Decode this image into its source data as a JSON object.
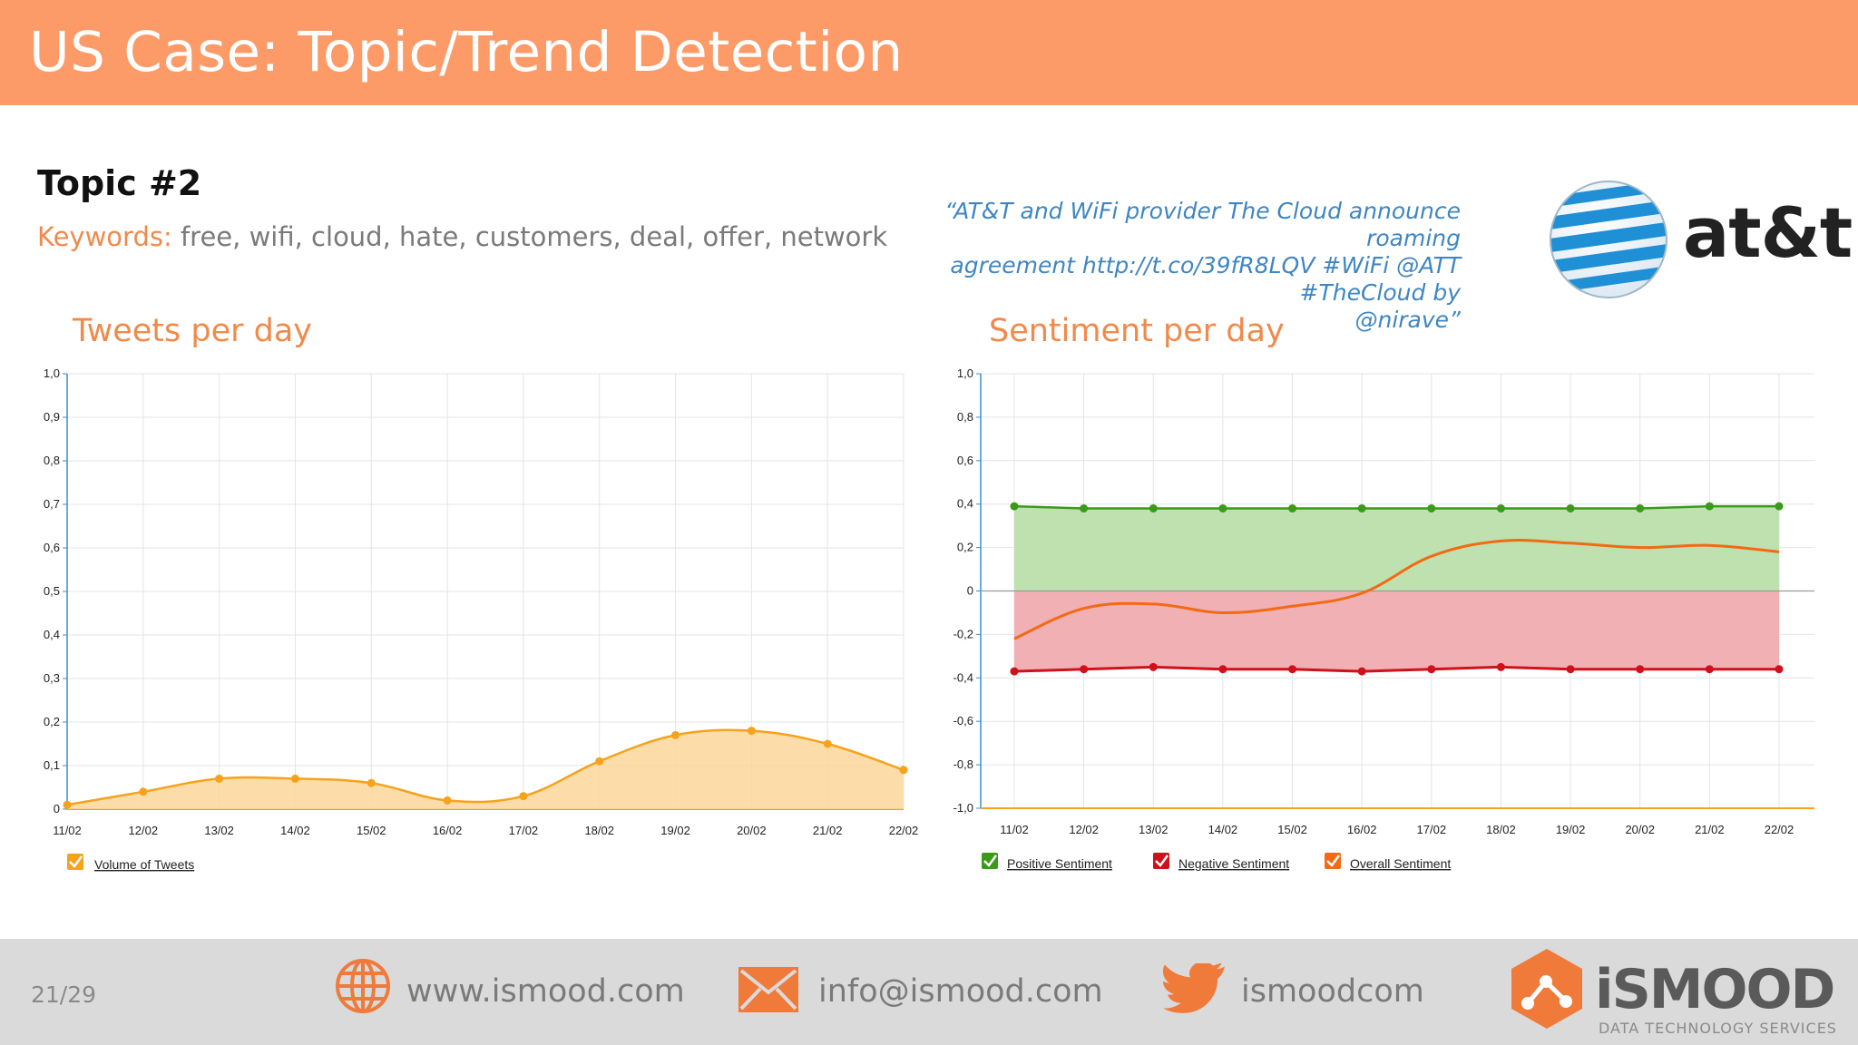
{
  "header": {
    "title": "US Case: Topic/Trend Detection"
  },
  "topic": {
    "title": "Topic #2",
    "keywords_label": "Keywords:",
    "keywords": " free, wifi, cloud, hate, customers, deal, offer, network"
  },
  "quote": {
    "line1": "“AT&T and WiFi provider The Cloud announce roaming",
    "line2": "agreement http://t.co/39fR8LQV #WiFi @ATT #TheCloud by",
    "line3": "@nirave”"
  },
  "brand": {
    "name": "at&t"
  },
  "colors": {
    "header": "#fc9b68",
    "accent": "#f08a4b",
    "volume": "#f7a21b",
    "positive": "#3a9a1a",
    "negative": "#d0101a",
    "overall": "#f26a14"
  },
  "chart_data": [
    {
      "type": "area",
      "title": "Tweets per day",
      "x": [
        "11/02",
        "12/02",
        "13/02",
        "14/02",
        "15/02",
        "16/02",
        "17/02",
        "18/02",
        "19/02",
        "20/02",
        "21/02",
        "22/02"
      ],
      "y_ticks": [
        "0",
        "0,1",
        "0,2",
        "0,3",
        "0,4",
        "0,5",
        "0,6",
        "0,7",
        "0,8",
        "0,9",
        "1,0"
      ],
      "ylim": [
        0,
        1
      ],
      "series": [
        {
          "name": "Volume of Tweets",
          "color": "#f7a21b",
          "values": [
            0.01,
            0.04,
            0.07,
            0.07,
            0.06,
            0.02,
            0.03,
            0.11,
            0.17,
            0.18,
            0.15,
            0.09
          ]
        }
      ],
      "grid": true,
      "legend": "bottom-left"
    },
    {
      "type": "line",
      "title": "Sentiment per day",
      "x": [
        "11/02",
        "12/02",
        "13/02",
        "14/02",
        "15/02",
        "16/02",
        "17/02",
        "18/02",
        "19/02",
        "20/02",
        "21/02",
        "22/02"
      ],
      "y_ticks": [
        "-1,0",
        "-0,8",
        "-0,6",
        "-0,4",
        "-0,2",
        "0",
        "0,2",
        "0,4",
        "0,6",
        "0,8",
        "1,0"
      ],
      "ylim": [
        -1,
        1
      ],
      "series": [
        {
          "name": "Positive Sentiment",
          "color": "#3a9a1a",
          "values": [
            0.39,
            0.38,
            0.38,
            0.38,
            0.38,
            0.38,
            0.38,
            0.38,
            0.38,
            0.38,
            0.39,
            0.39
          ]
        },
        {
          "name": "Negative Sentiment",
          "color": "#d0101a",
          "values": [
            -0.37,
            -0.36,
            -0.35,
            -0.36,
            -0.36,
            -0.37,
            -0.36,
            -0.35,
            -0.36,
            -0.36,
            -0.36,
            -0.36
          ]
        },
        {
          "name": "Overall Sentiment",
          "color": "#f26a14",
          "values": [
            -0.22,
            -0.08,
            -0.06,
            -0.1,
            -0.07,
            -0.01,
            0.16,
            0.23,
            0.22,
            0.2,
            0.21,
            0.18
          ]
        }
      ],
      "grid": true,
      "legend": "bottom-left"
    }
  ],
  "footer": {
    "page": "21/29",
    "web": "www.ismood.com",
    "email": "info@ismood.com",
    "twitter": "ismoodcom",
    "logo_word": "iSMOOD",
    "logo_tag": "DATA TECHNOLOGY SERVICES"
  }
}
